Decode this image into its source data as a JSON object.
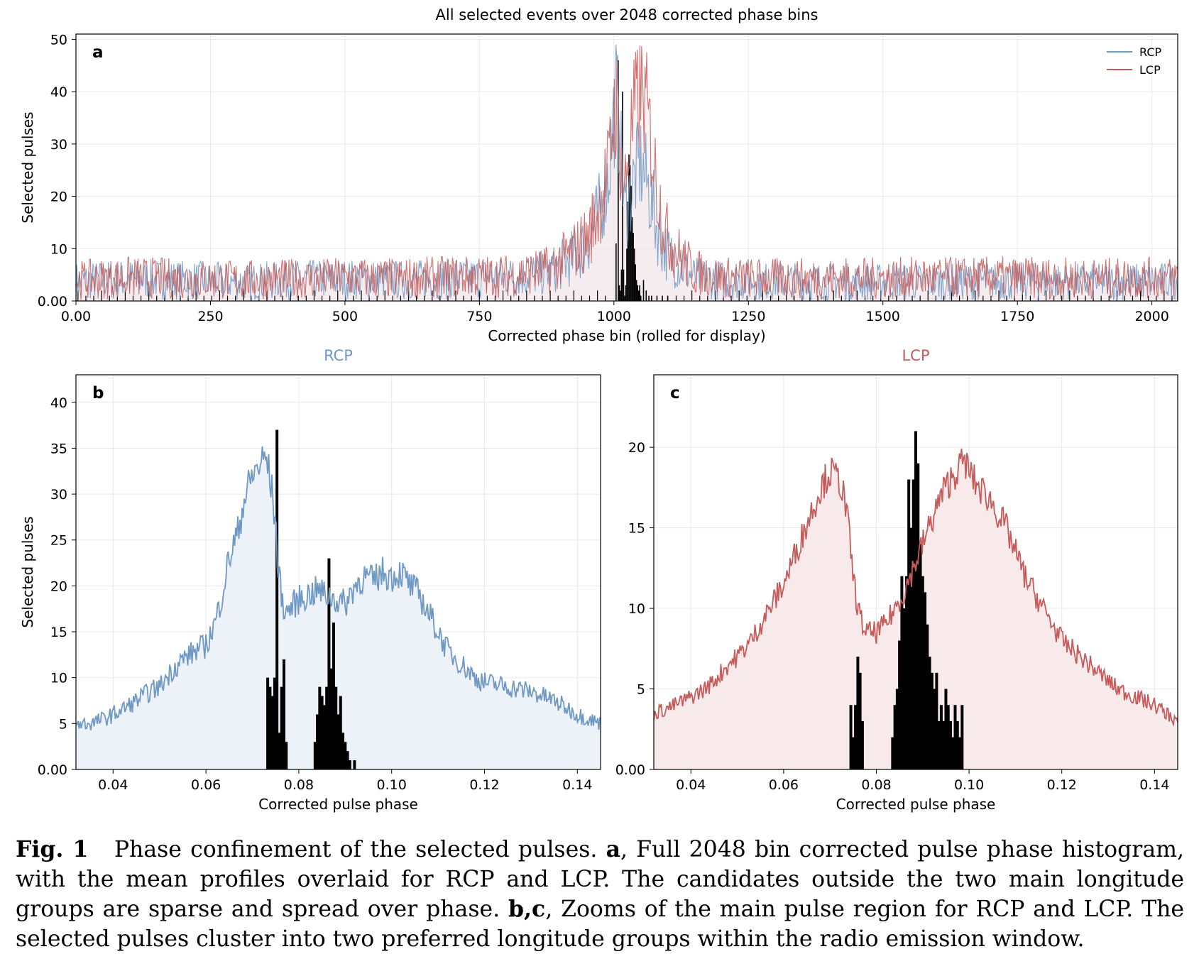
{
  "caption": {
    "fig_label": "Fig. 1",
    "intro": "Phase confinement of the selected pulses.",
    "a_label": "a",
    "a_text": ", Full 2048 bin corrected pulse phase histogram, with the mean profiles overlaid for RCP and LCP. The candidates outside the two main longitude groups are sparse and spread over phase.",
    "bc_label": "b,c",
    "bc_text": ", Zooms of the main pulse region for RCP and LCP. The selected pulses cluster into two preferred longitude groups within the radio emission window."
  },
  "colors": {
    "rcp": "#6f98c4",
    "lcp": "#c65b5b",
    "rcp_fill": "#edf2f8",
    "lcp_fill": "#f8eaea",
    "overlap_fill": "#efe4e8",
    "hist": "#000000"
  },
  "chart_data": [
    {
      "type": "line",
      "panel": "a",
      "title": "All selected events over 2048 corrected phase bins",
      "xlabel": "Corrected phase bin (rolled for display)",
      "ylabel": "Selected pulses",
      "xlim": [
        0,
        2048
      ],
      "ylim": [
        0,
        51
      ],
      "xticks": [
        0,
        250,
        500,
        750,
        1000,
        1250,
        1500,
        1750,
        2000
      ],
      "yticks": [
        0,
        10,
        20,
        30,
        40,
        50
      ],
      "grid": true,
      "legend": {
        "position": "top-right",
        "entries": [
          "RCP",
          "LCP"
        ]
      },
      "series": [
        {
          "name": "RCP",
          "x": [
            0,
            100,
            200,
            300,
            400,
            500,
            600,
            700,
            800,
            880,
            920,
            950,
            970,
            990,
            1000,
            1005,
            1010,
            1020,
            1030,
            1040,
            1050,
            1060,
            1070,
            1080,
            1090,
            1100,
            1120,
            1150,
            1200,
            1300,
            1500,
            1700,
            1900,
            2048
          ],
          "y": [
            3.8,
            4.2,
            4.0,
            3.6,
            4.0,
            4.2,
            4.0,
            4.3,
            4.5,
            5.5,
            8,
            11,
            16,
            24,
            36,
            40,
            32,
            17,
            20,
            24,
            26,
            23,
            19,
            14,
            11,
            9,
            7,
            4.5,
            4,
            3.8,
            3.6,
            3.8,
            3.6,
            3.8
          ]
        },
        {
          "name": "LCP",
          "x": [
            0,
            100,
            200,
            300,
            400,
            500,
            600,
            700,
            800,
            880,
            920,
            950,
            970,
            990,
            1000,
            1005,
            1010,
            1020,
            1030,
            1040,
            1050,
            1060,
            1070,
            1080,
            1090,
            1100,
            1120,
            1150,
            1200,
            1300,
            1500,
            1700,
            1900,
            2048
          ],
          "y": [
            4.0,
            4.5,
            4.3,
            4.0,
            4.2,
            4.4,
            4.3,
            4.6,
            4.8,
            6,
            9,
            12,
            17,
            25,
            36,
            38,
            30,
            21,
            31,
            37,
            40,
            37,
            30,
            22,
            16,
            12,
            9,
            5.5,
            4.5,
            4.3,
            4.4,
            4.5,
            4.3,
            4.5
          ]
        }
      ],
      "histogram": {
        "x": [
          1004,
          1008,
          1010,
          1012,
          1014,
          1016,
          1018,
          1020,
          1022,
          1024,
          1026,
          1028,
          1030,
          1032,
          1034,
          1036,
          1038,
          1040,
          1042,
          1044,
          1046,
          1048,
          1050,
          1055,
          1060,
          1065,
          1070,
          1080,
          1090,
          1100
        ],
        "y": [
          11,
          46,
          3,
          2,
          6,
          40,
          6,
          1,
          3,
          10,
          19,
          28,
          26,
          22,
          16,
          13,
          10,
          7,
          4,
          3,
          2,
          3,
          1,
          4,
          2,
          1,
          1,
          1,
          1,
          1
        ]
      }
    },
    {
      "type": "line",
      "panel": "b",
      "title": "RCP",
      "xlabel": "Corrected pulse phase",
      "ylabel": "Selected pulses",
      "xlim": [
        0.032,
        0.145
      ],
      "ylim": [
        0,
        43
      ],
      "xticks": [
        0.04,
        0.06,
        0.08,
        0.1,
        0.12,
        0.14
      ],
      "yticks": [
        0,
        5,
        10,
        15,
        20,
        25,
        30,
        35,
        40
      ],
      "grid": true,
      "series": [
        {
          "name": "RCP",
          "x": [
            0.032,
            0.035,
            0.038,
            0.04,
            0.042,
            0.045,
            0.048,
            0.05,
            0.053,
            0.055,
            0.058,
            0.06,
            0.062,
            0.063,
            0.065,
            0.067,
            0.068,
            0.07,
            0.072,
            0.073,
            0.074,
            0.075,
            0.0755,
            0.076,
            0.077,
            0.078,
            0.08,
            0.082,
            0.084,
            0.086,
            0.088,
            0.09,
            0.092,
            0.094,
            0.096,
            0.098,
            0.1,
            0.102,
            0.104,
            0.106,
            0.108,
            0.11,
            0.112,
            0.114,
            0.116,
            0.118,
            0.12,
            0.125,
            0.13,
            0.135,
            0.14,
            0.145
          ],
          "y": [
            5,
            5,
            5.5,
            6,
            6.5,
            7.5,
            8.5,
            9,
            11,
            12,
            13,
            13.5,
            16,
            18,
            23,
            26,
            29,
            32,
            33.5,
            34,
            31,
            27,
            22,
            20,
            17,
            17.5,
            18.5,
            19,
            19.5,
            19,
            18.5,
            18,
            20,
            21,
            20.5,
            21.5,
            21,
            21.5,
            20,
            19,
            17,
            15,
            13,
            12,
            11,
            10,
            9.5,
            9,
            8.5,
            7.5,
            6,
            5
          ]
        }
      ],
      "histogram": {
        "x": [
          0.0733,
          0.0738,
          0.0743,
          0.0748,
          0.0753,
          0.0758,
          0.0763,
          0.0768,
          0.0773,
          0.0835,
          0.084,
          0.0845,
          0.085,
          0.0855,
          0.086,
          0.0865,
          0.087,
          0.0875,
          0.088,
          0.0885,
          0.089,
          0.0895,
          0.09,
          0.0905,
          0.091,
          0.092
        ],
        "y": [
          10,
          9,
          8,
          10,
          37,
          4,
          9,
          12,
          3,
          3,
          6,
          9,
          8,
          7,
          9,
          23,
          11,
          16,
          9,
          6,
          8,
          4,
          3,
          2,
          1,
          1
        ]
      }
    },
    {
      "type": "line",
      "panel": "c",
      "title": "LCP",
      "xlabel": "Corrected pulse phase",
      "ylabel": "",
      "xlim": [
        0.032,
        0.145
      ],
      "ylim": [
        0,
        24.5
      ],
      "xticks": [
        0.04,
        0.06,
        0.08,
        0.1,
        0.12,
        0.14
      ],
      "yticks": [
        0,
        5,
        10,
        15,
        20
      ],
      "grid": true,
      "series": [
        {
          "name": "LCP",
          "x": [
            0.032,
            0.035,
            0.038,
            0.04,
            0.043,
            0.045,
            0.048,
            0.05,
            0.053,
            0.055,
            0.058,
            0.06,
            0.062,
            0.064,
            0.066,
            0.068,
            0.07,
            0.072,
            0.073,
            0.074,
            0.075,
            0.076,
            0.077,
            0.078,
            0.08,
            0.082,
            0.084,
            0.086,
            0.088,
            0.09,
            0.092,
            0.094,
            0.096,
            0.098,
            0.099,
            0.1,
            0.102,
            0.104,
            0.106,
            0.108,
            0.11,
            0.112,
            0.114,
            0.116,
            0.118,
            0.12,
            0.124,
            0.128,
            0.132,
            0.136,
            0.14,
            0.145
          ],
          "y": [
            3.5,
            3.8,
            4.2,
            4.5,
            5,
            5.5,
            6.5,
            7,
            8,
            9,
            10.5,
            11.5,
            13,
            14.5,
            16,
            17.5,
            18.5,
            18,
            17,
            15,
            12,
            10,
            9,
            8.5,
            8.5,
            9,
            10,
            11,
            12.5,
            14,
            15.5,
            17,
            18,
            18.8,
            19.2,
            18.5,
            17.5,
            17,
            16,
            15,
            13.5,
            12,
            11,
            10,
            9,
            8,
            7,
            6,
            5,
            4.5,
            4,
            3
          ]
        }
      ],
      "histogram": {
        "x": [
          0.0745,
          0.075,
          0.0755,
          0.076,
          0.0765,
          0.077,
          0.0835,
          0.084,
          0.0845,
          0.085,
          0.0855,
          0.086,
          0.0865,
          0.087,
          0.0875,
          0.088,
          0.0885,
          0.089,
          0.0895,
          0.09,
          0.0905,
          0.091,
          0.0915,
          0.092,
          0.0925,
          0.093,
          0.0935,
          0.094,
          0.0945,
          0.095,
          0.0955,
          0.096,
          0.0965,
          0.097,
          0.0975,
          0.098,
          0.0985
        ],
        "y": [
          4,
          2,
          4,
          7,
          6,
          3,
          2,
          4,
          5,
          8,
          12,
          10,
          12,
          18,
          15,
          18,
          21,
          19,
          14,
          12,
          11,
          9,
          7,
          6,
          5,
          6,
          3,
          4,
          3,
          5,
          4,
          3,
          2,
          4,
          3,
          2,
          4
        ]
      }
    }
  ]
}
